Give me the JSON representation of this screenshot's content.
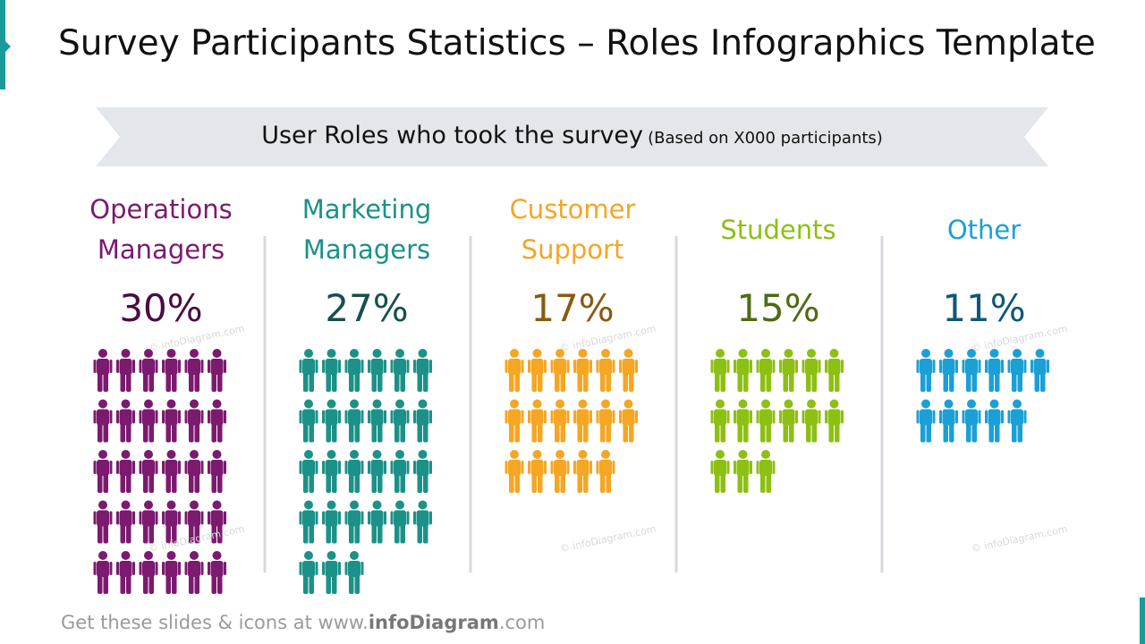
{
  "title": "Survey Participants Statistics – Roles Infographics Template",
  "banner": {
    "text": "User Roles who took the survey",
    "note": "(Based on X000 participants)"
  },
  "chart_data": {
    "type": "pictogram",
    "categories": [
      "Operations Managers",
      "Marketing Managers",
      "Customer Support",
      "Students",
      "Other"
    ],
    "values": [
      30,
      27,
      17,
      15,
      11
    ],
    "value_labels": [
      "30%",
      "27%",
      "17%",
      "15%",
      "11%"
    ],
    "colors": [
      "#7b1a6f",
      "#1c9188",
      "#f5a623",
      "#8cc012",
      "#1aa0d6"
    ],
    "value_label_colors": [
      "#4a0c42",
      "#174f4c",
      "#8a5a10",
      "#4f6b12",
      "#0f5878"
    ]
  },
  "watermark": "© infoDiagram.com",
  "footer": {
    "prefix": "Get these slides & icons at www.",
    "brand": "infoDiagram",
    "suffix": ".com"
  }
}
